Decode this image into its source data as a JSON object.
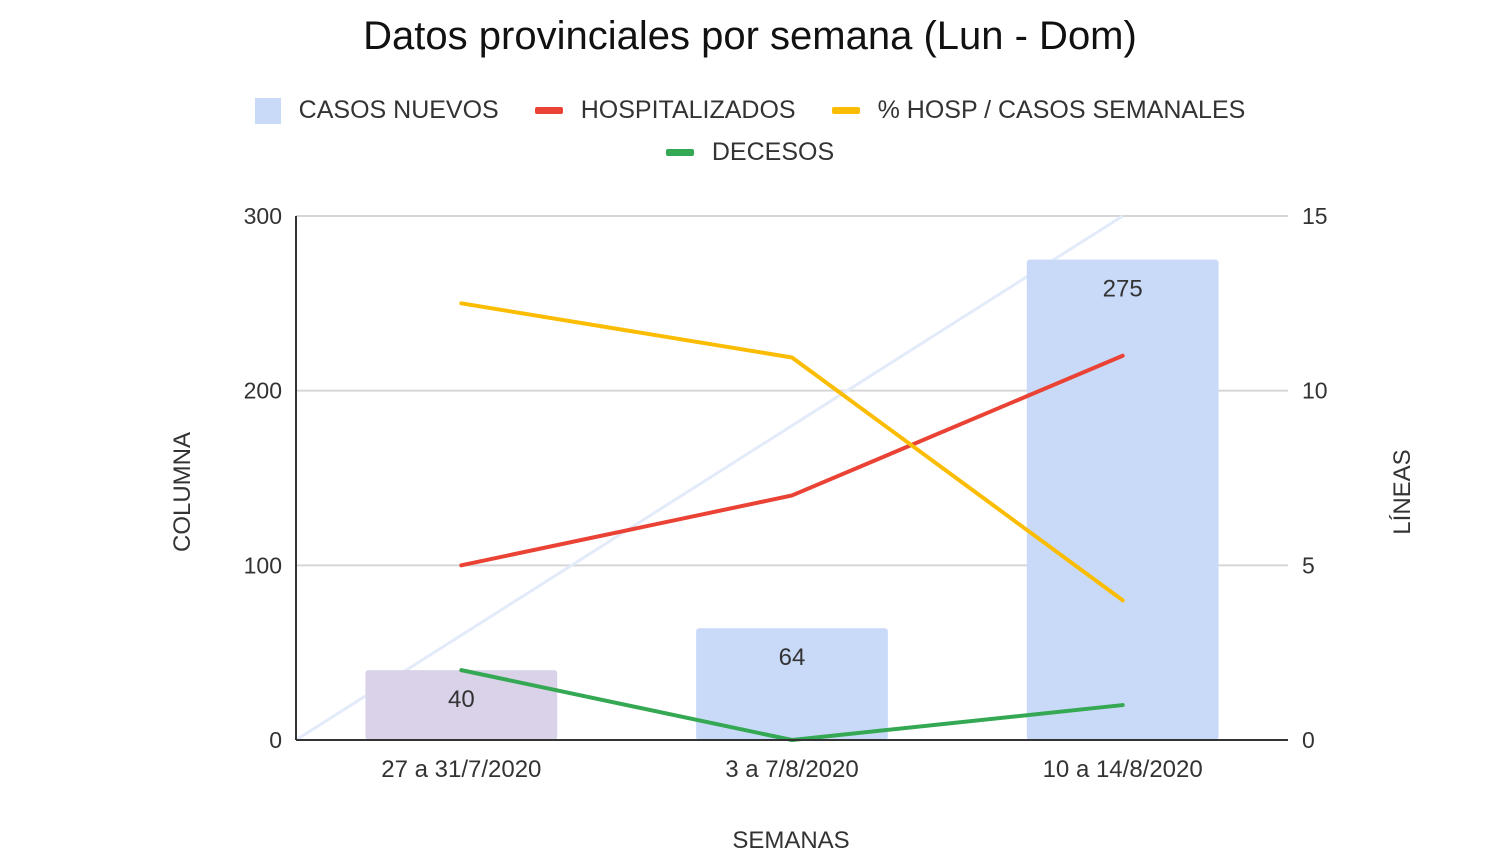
{
  "chart_data": {
    "type": "bar",
    "title": "Datos provinciales por semana (Lun - Dom)",
    "xlabel": "SEMANAS",
    "ylabel_left": "COLUMNA",
    "ylabel_right": "LÍNEAS",
    "categories": [
      "27 a 31/7/2020",
      "3 a 7/8/2020",
      "10 a 14/8/2020"
    ],
    "y_left": {
      "min": 0,
      "max": 300,
      "ticks": [
        0,
        100,
        200,
        300
      ]
    },
    "y_right": {
      "min": 0,
      "max": 15,
      "ticks": [
        0,
        5,
        10,
        15
      ]
    },
    "grid": true,
    "legend_position": "top",
    "bars": {
      "name": "CASOS NUEVOS",
      "axis": "left",
      "values": [
        40,
        64,
        275
      ],
      "labels": [
        "40",
        "64",
        "275"
      ],
      "colors": [
        "#d9d2e9",
        "#c9daf8",
        "#c9daf8"
      ]
    },
    "series": [
      {
        "name": "HOSPITALIZADOS",
        "type": "line",
        "axis": "right",
        "color": "#ea4335",
        "values": [
          5,
          7,
          11
        ]
      },
      {
        "name": "% HOSP / CASOS SEMANALES",
        "type": "line",
        "axis": "right",
        "color": "#fbbc04",
        "values": [
          12.5,
          10.95,
          4.0
        ]
      },
      {
        "name": "DECESOS",
        "type": "line",
        "axis": "right",
        "color": "#34a853",
        "values": [
          2,
          0,
          1
        ]
      }
    ],
    "legend": [
      {
        "name": "CASOS NUEVOS",
        "kind": "box",
        "color": "#c9daf8"
      },
      {
        "name": "HOSPITALIZADOS",
        "kind": "line",
        "color": "#ea4335"
      },
      {
        "name": "% HOSP / CASOS SEMANALES",
        "kind": "line",
        "color": "#fbbc04"
      },
      {
        "name": "DECESOS",
        "kind": "line",
        "color": "#34a853"
      }
    ],
    "trendline": {
      "axis": "left",
      "color": "#e3ebfb",
      "from": [
        0,
        0
      ],
      "to": [
        2.5,
        300
      ]
    }
  }
}
